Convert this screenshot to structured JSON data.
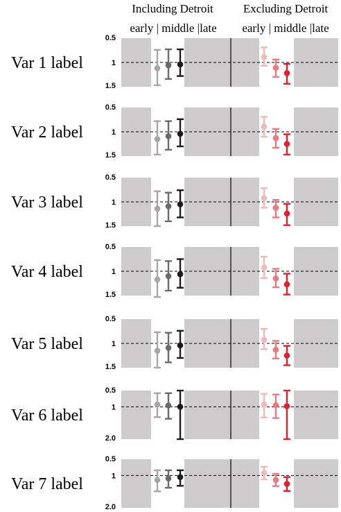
{
  "chart_data": {
    "type": "scatter",
    "headers": {
      "left": "Including Detroit",
      "right": "Excluding Detroit",
      "left_sub": "early | middle |late",
      "right_sub": "early | middle |late"
    },
    "colors": {
      "panel_bg": "#cdcbcc",
      "window_bg": "#ffffff",
      "left_series": [
        "#a6a6a6",
        "#6b6b6b",
        "#1c1c1c"
      ],
      "right_series": [
        "#f2b9b9",
        "#ea7a7f",
        "#e0202c"
      ]
    },
    "rows": [
      {
        "label": "Var 1 label",
        "ticks": [
          "0.5",
          "1",
          "1.5"
        ],
        "ylim": [
          0.5,
          1.5
        ],
        "left": [
          {
            "y": 1.12,
            "lo": 0.74,
            "hi": 1.47
          },
          {
            "y": 1.06,
            "lo": 0.73,
            "hi": 1.34
          },
          {
            "y": 1.04,
            "lo": 0.73,
            "hi": 1.28
          }
        ],
        "right": [
          {
            "y": 0.89,
            "lo": 0.69,
            "hi": 1.07
          },
          {
            "y": 1.11,
            "lo": 0.94,
            "hi": 1.3
          },
          {
            "y": 1.22,
            "lo": 1.03,
            "hi": 1.44
          }
        ]
      },
      {
        "label": "Var 2 label",
        "ticks": [
          "0.5",
          "1",
          "1.5"
        ],
        "ylim": [
          0.5,
          1.5
        ],
        "left": [
          {
            "y": 1.15,
            "lo": 0.78,
            "hi": 1.47
          },
          {
            "y": 1.09,
            "lo": 0.78,
            "hi": 1.37
          },
          {
            "y": 1.04,
            "lo": 0.74,
            "hi": 1.3
          }
        ],
        "right": [
          {
            "y": 0.89,
            "lo": 0.69,
            "hi": 1.1
          },
          {
            "y": 1.13,
            "lo": 0.94,
            "hi": 1.33
          },
          {
            "y": 1.25,
            "lo": 1.05,
            "hi": 1.47
          }
        ]
      },
      {
        "label": "Var 3 label",
        "ticks": [
          "0.5",
          "1",
          "1.5"
        ],
        "ylim": [
          0.5,
          1.5
        ],
        "left": [
          {
            "y": 1.14,
            "lo": 0.78,
            "hi": 1.5
          },
          {
            "y": 1.09,
            "lo": 0.81,
            "hi": 1.4
          },
          {
            "y": 1.05,
            "lo": 0.76,
            "hi": 1.32
          }
        ],
        "right": [
          {
            "y": 0.92,
            "lo": 0.72,
            "hi": 1.12
          },
          {
            "y": 1.12,
            "lo": 0.96,
            "hi": 1.32
          },
          {
            "y": 1.24,
            "lo": 1.04,
            "hi": 1.48
          }
        ]
      },
      {
        "label": "Var 4 label",
        "ticks": [
          "0.5",
          "1",
          "1.5"
        ],
        "ylim": [
          0.5,
          1.5
        ],
        "left": [
          {
            "y": 1.17,
            "lo": 0.77,
            "hi": 1.53
          },
          {
            "y": 1.1,
            "lo": 0.79,
            "hi": 1.4
          },
          {
            "y": 1.06,
            "lo": 0.75,
            "hi": 1.34
          }
        ],
        "right": [
          {
            "y": 0.92,
            "lo": 0.7,
            "hi": 1.14
          },
          {
            "y": 1.15,
            "lo": 0.95,
            "hi": 1.33
          },
          {
            "y": 1.27,
            "lo": 1.05,
            "hi": 1.48
          }
        ]
      },
      {
        "label": "Var 5 label",
        "ticks": [
          "0.5",
          "1",
          "1.5"
        ],
        "ylim": [
          0.5,
          1.5
        ],
        "left": [
          {
            "y": 1.15,
            "lo": 0.77,
            "hi": 1.5
          },
          {
            "y": 1.09,
            "lo": 0.78,
            "hi": 1.39
          },
          {
            "y": 1.04,
            "lo": 0.74,
            "hi": 1.3
          }
        ],
        "right": [
          {
            "y": 0.92,
            "lo": 0.7,
            "hi": 1.12
          },
          {
            "y": 1.13,
            "lo": 0.95,
            "hi": 1.31
          },
          {
            "y": 1.25,
            "lo": 1.05,
            "hi": 1.45
          }
        ]
      },
      {
        "label": "Var 6 label",
        "ticks": [
          "0.5",
          "1",
          "2.0"
        ],
        "ylim": [
          0.5,
          2.0
        ],
        "left": [
          {
            "y": 0.93,
            "lo": 0.58,
            "hi": 1.32
          },
          {
            "y": 0.96,
            "lo": 0.58,
            "hi": 1.37
          },
          {
            "y": 1.0,
            "lo": 0.5,
            "hi": 2.0
          }
        ],
        "right": [
          {
            "y": 0.93,
            "lo": 0.6,
            "hi": 1.33
          },
          {
            "y": 0.95,
            "lo": 0.62,
            "hi": 1.35
          },
          {
            "y": 0.98,
            "lo": 0.5,
            "hi": 2.0
          }
        ]
      },
      {
        "label": "Var 7 label",
        "ticks": [
          "0.5",
          "1",
          "2.0"
        ],
        "ylim": [
          0.5,
          2.0
        ],
        "left": [
          {
            "y": 1.14,
            "lo": 0.84,
            "hi": 1.49
          },
          {
            "y": 1.09,
            "lo": 0.84,
            "hi": 1.38
          },
          {
            "y": 1.05,
            "lo": 0.84,
            "hi": 1.32
          }
        ],
        "right": [
          {
            "y": 0.92,
            "lo": 0.73,
            "hi": 1.12
          },
          {
            "y": 1.14,
            "lo": 0.95,
            "hi": 1.33
          },
          {
            "y": 1.26,
            "lo": 1.05,
            "hi": 1.48
          }
        ]
      }
    ]
  }
}
